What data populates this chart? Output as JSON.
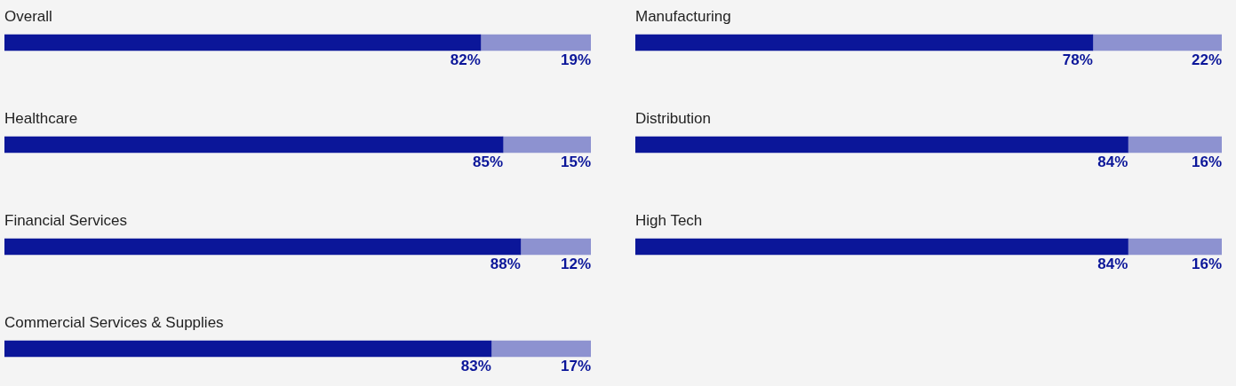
{
  "chart_data": [
    {
      "type": "bar",
      "orientation": "horizontal",
      "stacked": true,
      "title": "Overall",
      "categories": [
        null
      ],
      "tick_labels": false,
      "series": [
        {
          "color": "#0b1699",
          "values": [
            82
          ],
          "value_labels": [
            "82%"
          ]
        },
        {
          "color": "#8d92d0",
          "values": [
            19
          ],
          "value_labels": [
            "19%"
          ]
        }
      ]
    },
    {
      "type": "bar",
      "orientation": "horizontal",
      "stacked": true,
      "title": "Manufacturing",
      "categories": [
        null
      ],
      "tick_labels": false,
      "series": [
        {
          "color": "#0b1699",
          "values": [
            78
          ],
          "value_labels": [
            "78%"
          ]
        },
        {
          "color": "#8d92d0",
          "values": [
            22
          ],
          "value_labels": [
            "22%"
          ]
        }
      ]
    },
    {
      "type": "bar",
      "orientation": "horizontal",
      "stacked": true,
      "title": "Healthcare",
      "categories": [
        null
      ],
      "tick_labels": false,
      "series": [
        {
          "color": "#0b1699",
          "values": [
            85
          ],
          "value_labels": [
            "85%"
          ]
        },
        {
          "color": "#8d92d0",
          "values": [
            15
          ],
          "value_labels": [
            "15%"
          ]
        }
      ]
    },
    {
      "type": "bar",
      "orientation": "horizontal",
      "stacked": true,
      "title": "Distribution",
      "categories": [
        null
      ],
      "tick_labels": false,
      "series": [
        {
          "color": "#0b1699",
          "values": [
            84
          ],
          "value_labels": [
            "84%"
          ]
        },
        {
          "color": "#8d92d0",
          "values": [
            16
          ],
          "value_labels": [
            "16%"
          ]
        }
      ]
    },
    {
      "type": "bar",
      "orientation": "horizontal",
      "stacked": true,
      "title": "Financial Services",
      "categories": [
        null
      ],
      "tick_labels": false,
      "series": [
        {
          "color": "#0b1699",
          "values": [
            88
          ],
          "value_labels": [
            "88%"
          ]
        },
        {
          "color": "#8d92d0",
          "values": [
            12
          ],
          "value_labels": [
            "12%"
          ]
        }
      ]
    },
    {
      "type": "bar",
      "orientation": "horizontal",
      "stacked": true,
      "title": "High Tech",
      "categories": [
        null
      ],
      "tick_labels": false,
      "series": [
        {
          "color": "#0b1699",
          "values": [
            84
          ],
          "value_labels": [
            "84%"
          ]
        },
        {
          "color": "#8d92d0",
          "values": [
            16
          ],
          "value_labels": [
            "16%"
          ]
        }
      ]
    },
    {
      "type": "bar",
      "orientation": "horizontal",
      "stacked": true,
      "title": "Commercial Services & Supplies",
      "categories": [
        null
      ],
      "tick_labels": false,
      "series": [
        {
          "color": "#0b1699",
          "values": [
            83
          ],
          "value_labels": [
            "83%"
          ]
        },
        {
          "color": "#8d92d0",
          "values": [
            17
          ],
          "value_labels": [
            "17%"
          ]
        }
      ]
    }
  ]
}
